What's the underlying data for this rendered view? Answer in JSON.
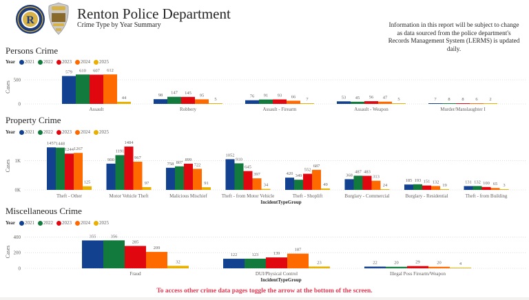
{
  "header": {
    "title": "Renton Police Department",
    "subtitle": "Crime Type by Year Summary",
    "notice": "Information in this report will be subject to change as data sourced from the police department's Records Management System (LERMS) is updated daily."
  },
  "logos": {
    "city": "city-of-renton-seal",
    "badge": "renton-police-badge"
  },
  "legend": {
    "title": "Year",
    "items": [
      {
        "label": "2021",
        "color": "#12418f"
      },
      {
        "label": "2022",
        "color": "#127a3c"
      },
      {
        "label": "2023",
        "color": "#e0070f"
      },
      {
        "label": "2024",
        "color": "#ff6a00"
      },
      {
        "label": "2025",
        "color": "#e8b000"
      }
    ]
  },
  "sections": {
    "persons": "Persons Crime",
    "property": "Property Crime",
    "misc": "Miscellaneous Crime"
  },
  "footer": "To access other crime data pages toggle the arrow at the bottom of the screen.",
  "chart_data": [
    {
      "type": "bar",
      "title": "Persons Crime",
      "xlabel": "",
      "ylabel": "Cases",
      "ylim": [
        0,
        700
      ],
      "yticks": [
        "0",
        "500"
      ],
      "ytick_values": [
        0,
        500
      ],
      "grid": true,
      "legend": "top-left",
      "categories": [
        "Assault",
        "Robbery",
        "Assault - Firearm",
        "Assault - Weapon",
        "Murder/Manslaughter I"
      ],
      "series": [
        {
          "name": "2021",
          "values": [
            579,
            98,
            76,
            53,
            7
          ]
        },
        {
          "name": "2022",
          "values": [
            610,
            147,
            91,
            45,
            8
          ]
        },
        {
          "name": "2023",
          "values": [
            607,
            145,
            93,
            56,
            8
          ]
        },
        {
          "name": "2024",
          "values": [
            612,
            95,
            66,
            47,
            6
          ]
        },
        {
          "name": "2025",
          "values": [
            44,
            5,
            7,
            5,
            2
          ]
        }
      ]
    },
    {
      "type": "bar",
      "title": "Property Crime",
      "xlabel": "IncidentTypeGroup",
      "ylabel": "Cases",
      "ylim": [
        0,
        1650
      ],
      "yticks": [
        "0K",
        "1K"
      ],
      "ytick_values": [
        0,
        1000
      ],
      "grid": true,
      "legend": "top-left",
      "categories": [
        "Theft - Other",
        "Motor Vehicle Theft",
        "Malicious Mischief",
        "Theft - from Motor Vehicle",
        "Theft - Shoplift",
        "Burglary - Commercial",
        "Burglary - Residential",
        "Theft - from Building"
      ],
      "series": [
        {
          "name": "2021",
          "values": [
            1457,
            900,
            758,
            1052,
            420,
            368,
            185,
            131
          ]
        },
        {
          "name": "2022",
          "values": [
            1448,
            1191,
            807,
            910,
            349,
            487,
            193,
            132
          ]
        },
        {
          "name": "2023",
          "values": [
            1244,
            1484,
            899,
            645,
            552,
            483,
            151,
            100
          ]
        },
        {
          "name": "2024",
          "values": [
            1267,
            967,
            722,
            397,
            687,
            313,
            132,
            65
          ]
        },
        {
          "name": "2025",
          "values": [
            125,
            97,
            91,
            34,
            49,
            24,
            19,
            3
          ]
        }
      ]
    },
    {
      "type": "bar",
      "title": "Miscellaneous Crime",
      "xlabel": "IncidentTypeGroup",
      "ylabel": "Cases",
      "ylim": [
        0,
        420
      ],
      "yticks": [
        "0",
        "200",
        "400"
      ],
      "ytick_values": [
        0,
        200,
        400
      ],
      "grid": true,
      "legend": "top-left",
      "categories": [
        "Fraud",
        "DUI/Physical Control",
        "Illegal Poss Firearm/Weapon"
      ],
      "series": [
        {
          "name": "2021",
          "values": [
            355,
            122,
            22
          ]
        },
        {
          "name": "2022",
          "values": [
            356,
            123,
            20
          ]
        },
        {
          "name": "2023",
          "values": [
            285,
            139,
            29
          ]
        },
        {
          "name": "2024",
          "values": [
            209,
            187,
            20
          ]
        },
        {
          "name": "2025",
          "values": [
            32,
            23,
            4
          ]
        }
      ]
    }
  ]
}
